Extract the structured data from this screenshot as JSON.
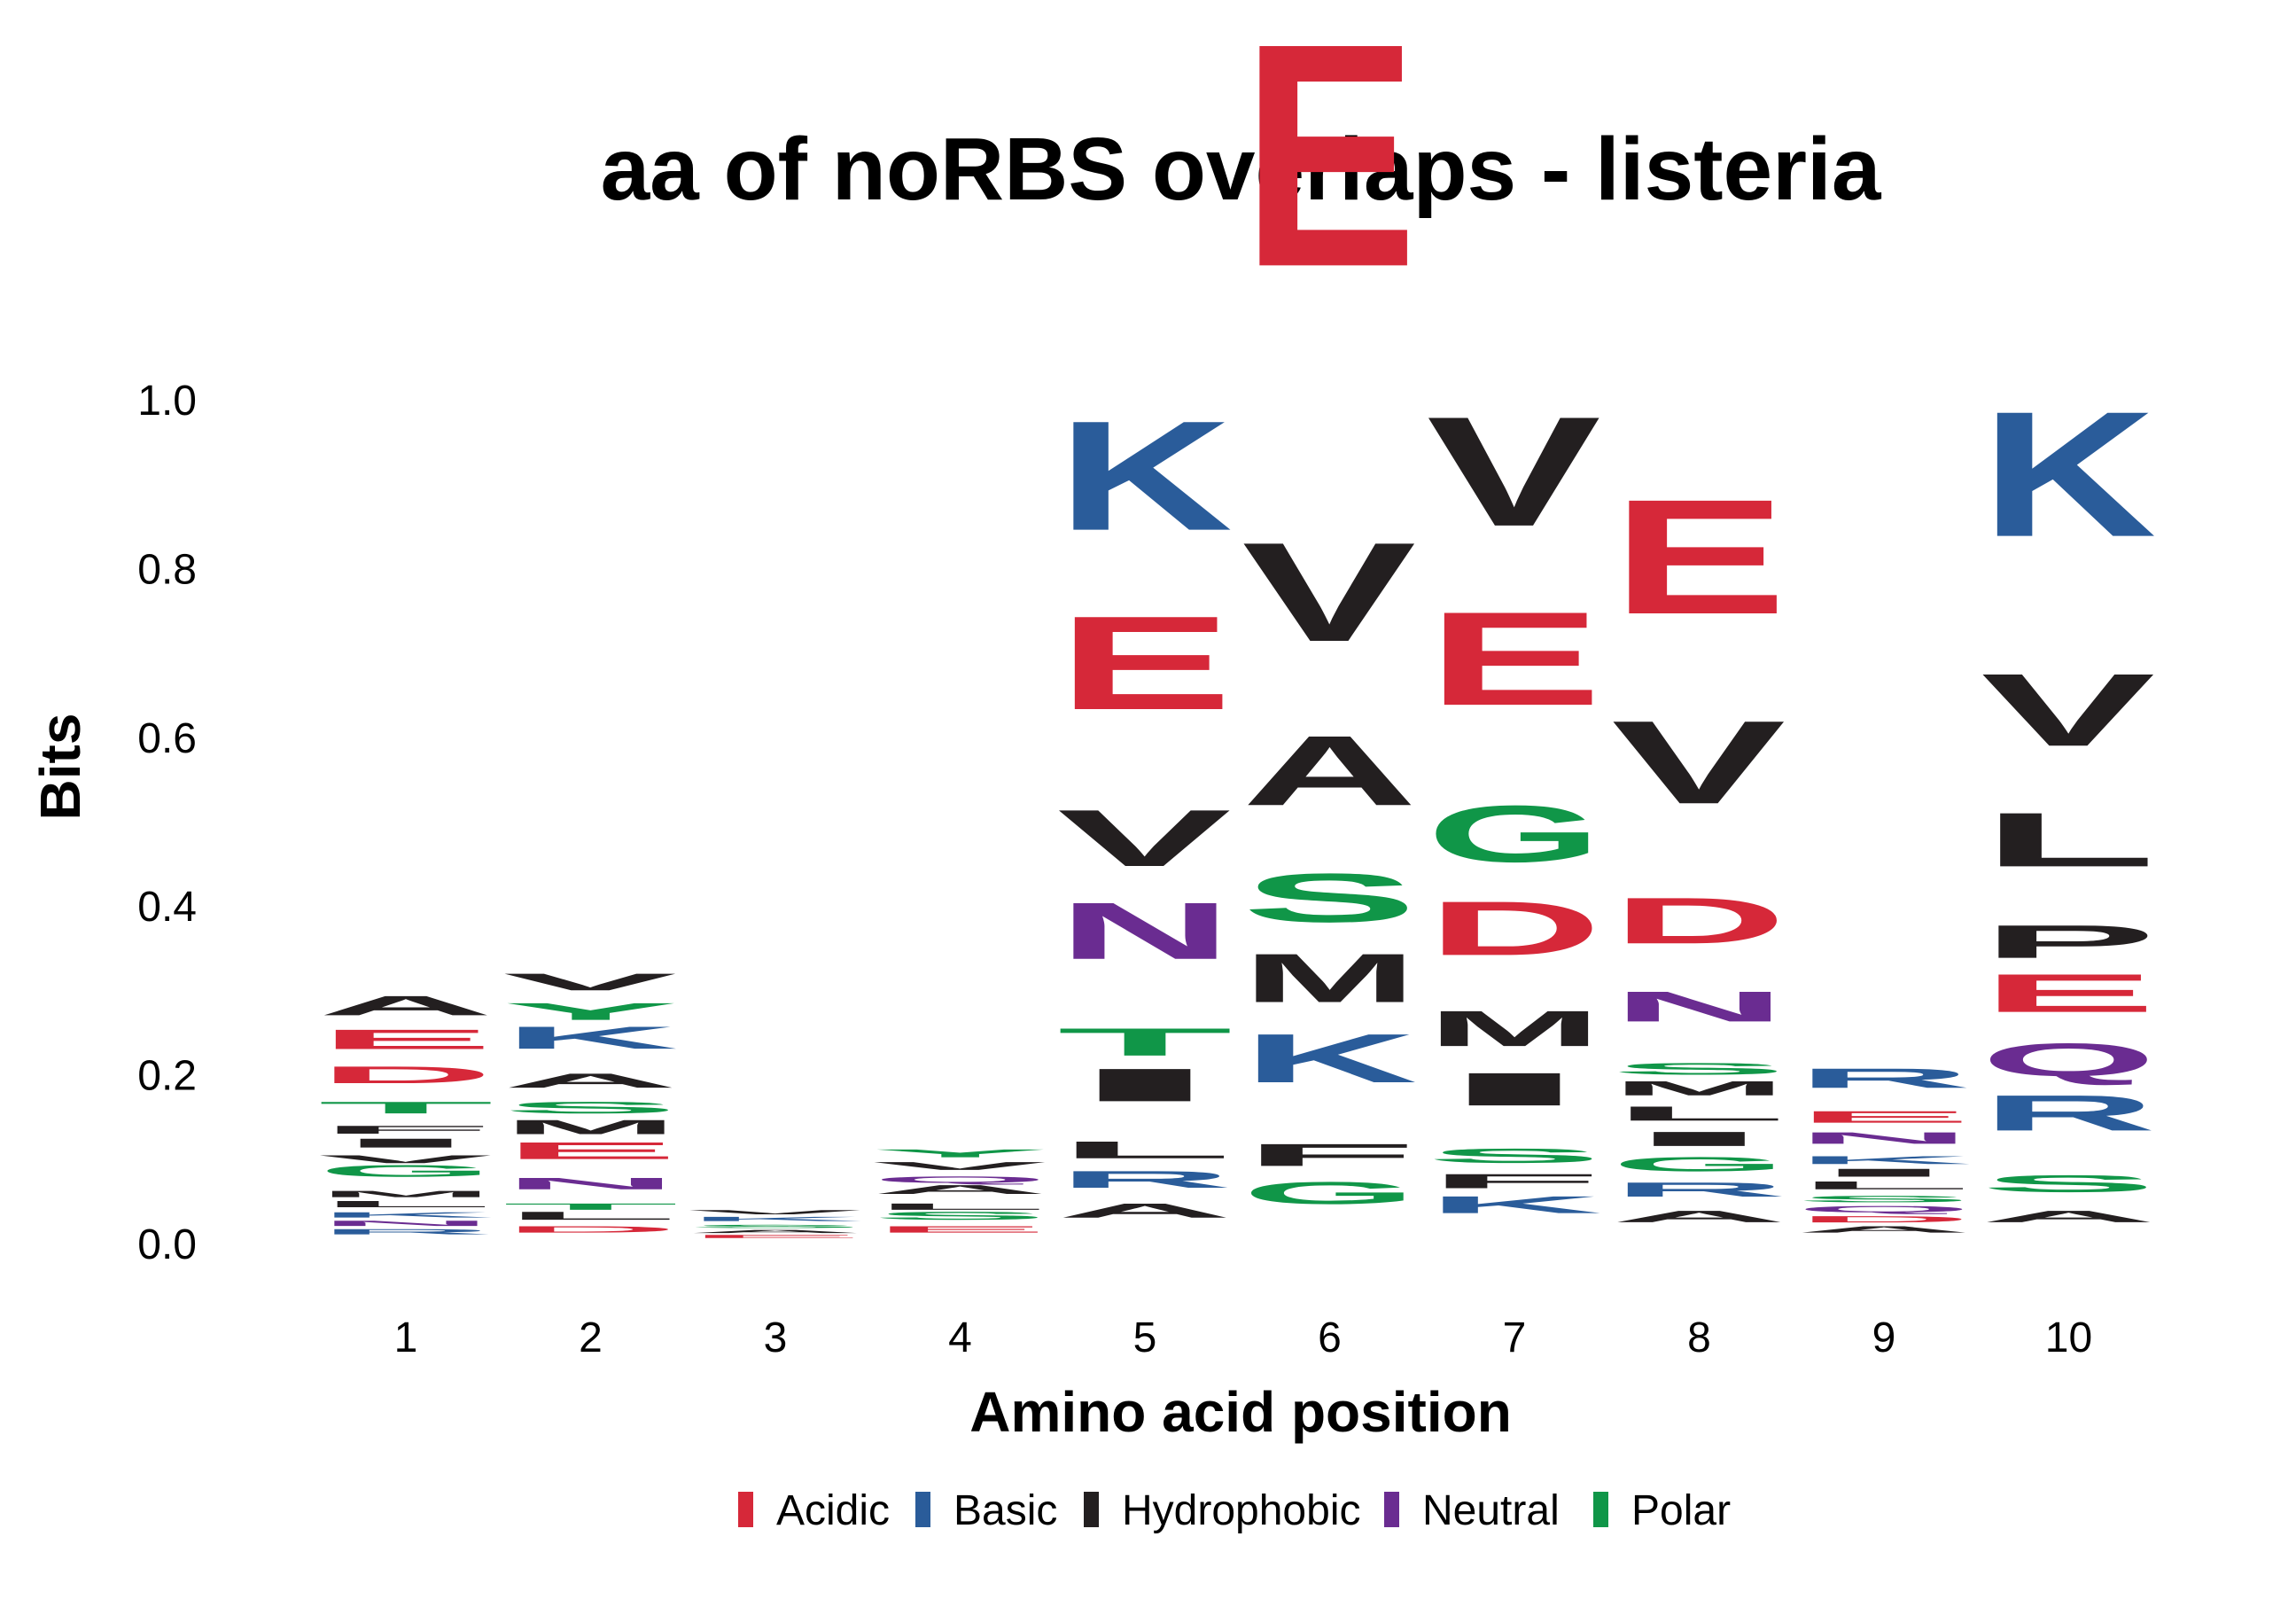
{
  "chart_data": {
    "type": "sequence-logo",
    "title": "aa of noRBS overlaps - listeria",
    "xlabel": "Amino acid position",
    "ylabel": "Bits",
    "ylim": [
      0,
      1.15
    ],
    "yticks": [
      "0.0",
      "0.2",
      "0.4",
      "0.6",
      "0.8",
      "1.0"
    ],
    "ytick_values": [
      0,
      0.2,
      0.4,
      0.6,
      0.8,
      1.0
    ],
    "grid": false,
    "legend_position": "bottom",
    "legend": [
      {
        "name": "Acidic",
        "color": "#D62839"
      },
      {
        "name": "Basic",
        "color": "#2A5C9A"
      },
      {
        "name": "Hydrophobic",
        "color": "#231F20"
      },
      {
        "name": "Neutral",
        "color": "#6A2C91"
      },
      {
        "name": "Polar",
        "color": "#109648"
      }
    ],
    "positions": [
      {
        "label": "1",
        "letters": [
          {
            "aa": "R",
            "bits": 0.01,
            "group": "Basic"
          },
          {
            "aa": "N",
            "bits": 0.01,
            "group": "Neutral"
          },
          {
            "aa": "K",
            "bits": 0.01,
            "group": "Basic"
          },
          {
            "aa": "L",
            "bits": 0.012,
            "group": "Hydrophobic"
          },
          {
            "aa": "M",
            "bits": 0.012,
            "group": "Hydrophobic"
          },
          {
            "aa": "G",
            "bits": 0.025,
            "group": "Polar"
          },
          {
            "aa": "V",
            "bits": 0.015,
            "group": "Hydrophobic"
          },
          {
            "aa": "I",
            "bits": 0.02,
            "group": "Hydrophobic"
          },
          {
            "aa": "F",
            "bits": 0.015,
            "group": "Hydrophobic"
          },
          {
            "aa": "T",
            "bits": 0.025,
            "group": "Polar"
          },
          {
            "aa": "D",
            "bits": 0.035,
            "group": "Acidic"
          },
          {
            "aa": "E",
            "bits": 0.04,
            "group": "Acidic"
          },
          {
            "aa": "A",
            "bits": 0.04,
            "group": "Hydrophobic"
          }
        ]
      },
      {
        "label": "2",
        "letters": [
          {
            "aa": "D",
            "bits": 0.012,
            "group": "Acidic"
          },
          {
            "aa": "L",
            "bits": 0.015,
            "group": "Hydrophobic"
          },
          {
            "aa": "T",
            "bits": 0.012,
            "group": "Polar"
          },
          {
            "aa": "N",
            "bits": 0.025,
            "group": "Neutral"
          },
          {
            "aa": "E",
            "bits": 0.035,
            "group": "Acidic"
          },
          {
            "aa": "M",
            "bits": 0.03,
            "group": "Hydrophobic"
          },
          {
            "aa": "S",
            "bits": 0.025,
            "group": "Polar"
          },
          {
            "aa": "A",
            "bits": 0.03,
            "group": "Hydrophobic"
          },
          {
            "aa": "K",
            "bits": 0.045,
            "group": "Basic"
          },
          {
            "aa": "Y",
            "bits": 0.035,
            "group": "Polar"
          },
          {
            "aa": "V",
            "bits": 0.035,
            "group": "Hydrophobic"
          }
        ]
      },
      {
        "label": "3",
        "letters": [
          {
            "aa": "E",
            "bits": 0.006,
            "group": "Acidic"
          },
          {
            "aa": "A",
            "bits": 0.006,
            "group": "Hydrophobic"
          },
          {
            "aa": "S",
            "bits": 0.006,
            "group": "Polar"
          },
          {
            "aa": "K",
            "bits": 0.008,
            "group": "Basic"
          },
          {
            "aa": "V",
            "bits": 0.008,
            "group": "Hydrophobic"
          }
        ]
      },
      {
        "label": "4",
        "letters": [
          {
            "aa": "E",
            "bits": 0.012,
            "group": "Acidic"
          },
          {
            "aa": "S",
            "bits": 0.015,
            "group": "Polar"
          },
          {
            "aa": "L",
            "bits": 0.012,
            "group": "Hydrophobic"
          },
          {
            "aa": "A",
            "bits": 0.02,
            "group": "Hydrophobic"
          },
          {
            "aa": "Q",
            "bits": 0.012,
            "group": "Neutral"
          },
          {
            "aa": "V",
            "bits": 0.015,
            "group": "Hydrophobic"
          },
          {
            "aa": "Y",
            "bits": 0.015,
            "group": "Polar"
          }
        ]
      },
      {
        "label": "5",
        "letters": [
          {
            "aa": "A",
            "bits": 0.03,
            "group": "Hydrophobic"
          },
          {
            "aa": "R",
            "bits": 0.035,
            "group": "Basic"
          },
          {
            "aa": "L",
            "bits": 0.035,
            "group": "Hydrophobic"
          },
          {
            "aa": "I",
            "bits": 0.065,
            "group": "Hydrophobic"
          },
          {
            "aa": "T",
            "bits": 0.055,
            "group": "Polar"
          },
          {
            "aa": "N",
            "bits": 0.11,
            "group": "Neutral"
          },
          {
            "aa": "V",
            "bits": 0.11,
            "group": "Hydrophobic"
          },
          {
            "aa": "E",
            "bits": 0.18,
            "group": "Acidic"
          },
          {
            "aa": "K",
            "bits": 0.21,
            "group": "Basic"
          }
        ]
      },
      {
        "label": "6",
        "letters": [
          {
            "aa": "G",
            "bits": 0.045,
            "group": "Polar"
          },
          {
            "aa": "F",
            "bits": 0.045,
            "group": "Hydrophobic"
          },
          {
            "aa": "K",
            "bits": 0.095,
            "group": "Basic"
          },
          {
            "aa": "M",
            "bits": 0.095,
            "group": "Hydrophobic"
          },
          {
            "aa": "S",
            "bits": 0.095,
            "group": "Polar"
          },
          {
            "aa": "A",
            "bits": 0.135,
            "group": "Hydrophobic"
          },
          {
            "aa": "V",
            "bits": 0.19,
            "group": "Hydrophobic"
          },
          {
            "aa": "E",
            "bits": 0.425,
            "group": "Acidic"
          }
        ]
      },
      {
        "label": "7",
        "letters": [
          {
            "aa": "K",
            "bits": 0.035,
            "group": "Basic"
          },
          {
            "aa": "F",
            "bits": 0.03,
            "group": "Hydrophobic"
          },
          {
            "aa": "S",
            "bits": 0.03,
            "group": "Polar"
          },
          {
            "aa": "I",
            "bits": 0.065,
            "group": "Hydrophobic"
          },
          {
            "aa": "M",
            "bits": 0.07,
            "group": "Hydrophobic"
          },
          {
            "aa": "D",
            "bits": 0.105,
            "group": "Acidic"
          },
          {
            "aa": "G",
            "bits": 0.11,
            "group": "Polar"
          },
          {
            "aa": "E",
            "bits": 0.18,
            "group": "Acidic"
          },
          {
            "aa": "V",
            "bits": 0.21,
            "group": "Hydrophobic"
          }
        ]
      },
      {
        "label": "8",
        "letters": [
          {
            "aa": "A",
            "bits": 0.025,
            "group": "Hydrophobic"
          },
          {
            "aa": "R",
            "bits": 0.03,
            "group": "Basic"
          },
          {
            "aa": "G",
            "bits": 0.03,
            "group": "Polar"
          },
          {
            "aa": "I",
            "bits": 0.03,
            "group": "Hydrophobic"
          },
          {
            "aa": "L",
            "bits": 0.03,
            "group": "Hydrophobic"
          },
          {
            "aa": "M",
            "bits": 0.03,
            "group": "Hydrophobic"
          },
          {
            "aa": "S",
            "bits": 0.025,
            "group": "Polar"
          },
          {
            "aa": "N",
            "bits": 0.06,
            "group": "Neutral"
          },
          {
            "aa": "D",
            "bits": 0.09,
            "group": "Acidic"
          },
          {
            "aa": "V",
            "bits": 0.16,
            "group": "Hydrophobic"
          },
          {
            "aa": "E",
            "bits": 0.22,
            "group": "Acidic"
          }
        ]
      },
      {
        "label": "9",
        "letters": [
          {
            "aa": "A",
            "bits": 0.012,
            "group": "Hydrophobic"
          },
          {
            "aa": "D",
            "bits": 0.012,
            "group": "Acidic"
          },
          {
            "aa": "Q",
            "bits": 0.012,
            "group": "Neutral"
          },
          {
            "aa": "S",
            "bits": 0.012,
            "group": "Polar"
          },
          {
            "aa": "L",
            "bits": 0.015,
            "group": "Hydrophobic"
          },
          {
            "aa": "I",
            "bits": 0.015,
            "group": "Hydrophobic"
          },
          {
            "aa": "K",
            "bits": 0.015,
            "group": "Basic"
          },
          {
            "aa": "N",
            "bits": 0.025,
            "group": "Neutral"
          },
          {
            "aa": "E",
            "bits": 0.025,
            "group": "Acidic"
          },
          {
            "aa": "R",
            "bits": 0.04,
            "group": "Basic"
          }
        ]
      },
      {
        "label": "10",
        "letters": [
          {
            "aa": "A",
            "bits": 0.025,
            "group": "Hydrophobic"
          },
          {
            "aa": "S",
            "bits": 0.035,
            "group": "Polar"
          },
          {
            "aa": "R",
            "bits": 0.07,
            "group": "Basic"
          },
          {
            "aa": "Q",
            "bits": 0.065,
            "group": "Neutral"
          },
          {
            "aa": "E",
            "bits": 0.075,
            "group": "Acidic"
          },
          {
            "aa": "P",
            "bits": 0.065,
            "group": "Hydrophobic"
          },
          {
            "aa": "L",
            "bits": 0.105,
            "group": "Hydrophobic"
          },
          {
            "aa": "V",
            "bits": 0.14,
            "group": "Hydrophobic"
          },
          {
            "aa": "K",
            "bits": 0.24,
            "group": "Basic"
          }
        ]
      }
    ]
  }
}
